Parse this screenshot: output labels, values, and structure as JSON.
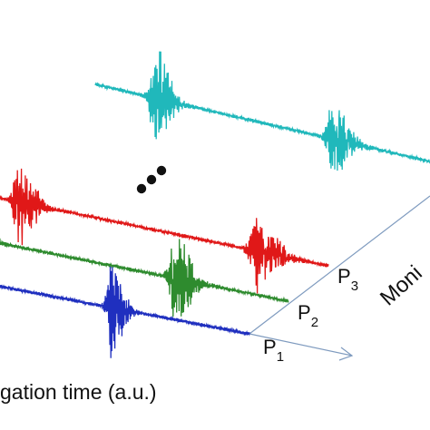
{
  "chart_data": {
    "type": "line",
    "title": "",
    "xlabel": "gation time (a.u.)",
    "zlabel": "Moni",
    "ellipsis": "...",
    "series": [
      {
        "name": "P",
        "sub": "1",
        "color": "#1f2fbf",
        "bursts": [
          {
            "t": 0.5,
            "amp": 1.0,
            "width": 0.035
          }
        ]
      },
      {
        "name": "P",
        "sub": "2",
        "color": "#2e8b2e",
        "bursts": [
          {
            "t": 0.02,
            "amp": 0.7,
            "width": 0.03
          },
          {
            "t": 0.64,
            "amp": 1.0,
            "width": 0.04
          }
        ]
      },
      {
        "name": "P",
        "sub": "3",
        "color": "#e01818",
        "bursts": [
          {
            "t": 0.13,
            "amp": 1.0,
            "width": 0.035
          },
          {
            "t": 0.8,
            "amp": 0.8,
            "width": 0.045
          }
        ]
      },
      {
        "name": "",
        "sub": "",
        "color": "#20b8bb",
        "bursts": [
          {
            "t": 0.18,
            "amp": 1.0,
            "width": 0.035
          },
          {
            "t": 0.71,
            "amp": 0.75,
            "width": 0.04
          }
        ]
      }
    ]
  }
}
